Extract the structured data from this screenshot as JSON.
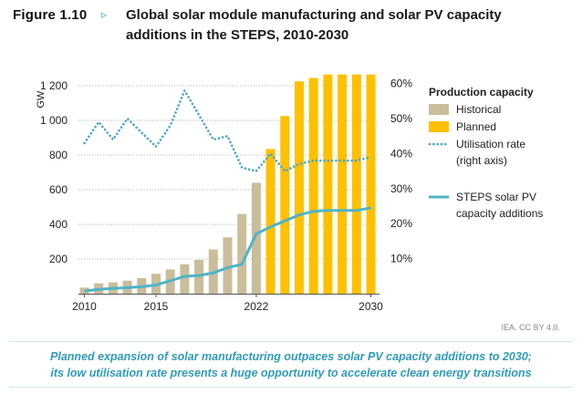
{
  "figure": {
    "label": "Figure 1.10",
    "arrow": "▹",
    "title": "Global solar module manufacturing and solar PV capacity additions in the STEPS, 2010-2030"
  },
  "credit": "IEA. CC BY 4.0.",
  "caption": {
    "line1": "Planned expansion of solar manufacturing outpaces solar PV capacity additions to 2030;",
    "line2": "its low utilisation rate presents a huge opportunity to accelerate clean energy transitions"
  },
  "colors": {
    "historical": "#c9bd9b",
    "planned": "#ffc000",
    "utilisation": "#4aa8c4",
    "steps": "#4fb3c8",
    "grid": "#9a9a9a"
  },
  "chart_data": {
    "type": "bar",
    "ylabel": "GW",
    "ylim": [
      0,
      1300
    ],
    "y_ticks": [
      200,
      400,
      600,
      800,
      1000,
      1200
    ],
    "y_tick_labels": [
      "200",
      "400",
      "600",
      "800",
      "1 000",
      "1 200"
    ],
    "y2lim": [
      0,
      65
    ],
    "y2_ticks": [
      10,
      20,
      30,
      40,
      50,
      60
    ],
    "y2_tick_labels": [
      "10%",
      "20%",
      "30%",
      "40%",
      "50%",
      "60%"
    ],
    "x_tick_labels": [
      {
        "year": 2010,
        "label": "2010"
      },
      {
        "year": 2015,
        "label": "2015"
      },
      {
        "year": 2022,
        "label": "2022"
      },
      {
        "year": 2030,
        "label": "2030"
      }
    ],
    "years": [
      2010,
      2011,
      2012,
      2013,
      2014,
      2015,
      2016,
      2017,
      2018,
      2019,
      2020,
      2021,
      2022,
      2023,
      2024,
      2025,
      2026,
      2027,
      2028,
      2029,
      2030
    ],
    "grid": "horizontal dotted",
    "legend": {
      "title": "Production capacity",
      "items": [
        {
          "key": "historical",
          "label": "Historical"
        },
        {
          "key": "planned",
          "label": "Planned"
        },
        {
          "key": "utilisation",
          "label": "Utilisation rate",
          "label2": "(right axis)"
        },
        {
          "key": "steps",
          "label": "STEPS solar PV",
          "label2": "capacity additions"
        }
      ],
      "position": "right"
    },
    "series": [
      {
        "name": "Historical",
        "kind": "bar",
        "axis": "left",
        "values": [
          35,
          60,
          65,
          75,
          90,
          115,
          140,
          170,
          195,
          255,
          325,
          460,
          640,
          null,
          null,
          null,
          null,
          null,
          null,
          null,
          null
        ]
      },
      {
        "name": "Planned",
        "kind": "bar",
        "axis": "left",
        "values": [
          null,
          null,
          null,
          null,
          null,
          null,
          null,
          null,
          null,
          null,
          null,
          null,
          null,
          835,
          1025,
          1225,
          1245,
          1265,
          1265,
          1265,
          1265
        ]
      },
      {
        "name": "Utilisation rate",
        "kind": "line-dotted",
        "axis": "right",
        "values": [
          43,
          49,
          44,
          50,
          46,
          42,
          48,
          58,
          51,
          44,
          45,
          36,
          35,
          40,
          35,
          37,
          38,
          38,
          38,
          38,
          39
        ]
      },
      {
        "name": "STEPS solar PV capacity additions",
        "kind": "line",
        "axis": "left",
        "values": [
          15,
          25,
          30,
          35,
          40,
          50,
          75,
          100,
          105,
          120,
          150,
          170,
          345,
          385,
          420,
          455,
          475,
          480,
          480,
          480,
          495
        ]
      }
    ]
  }
}
